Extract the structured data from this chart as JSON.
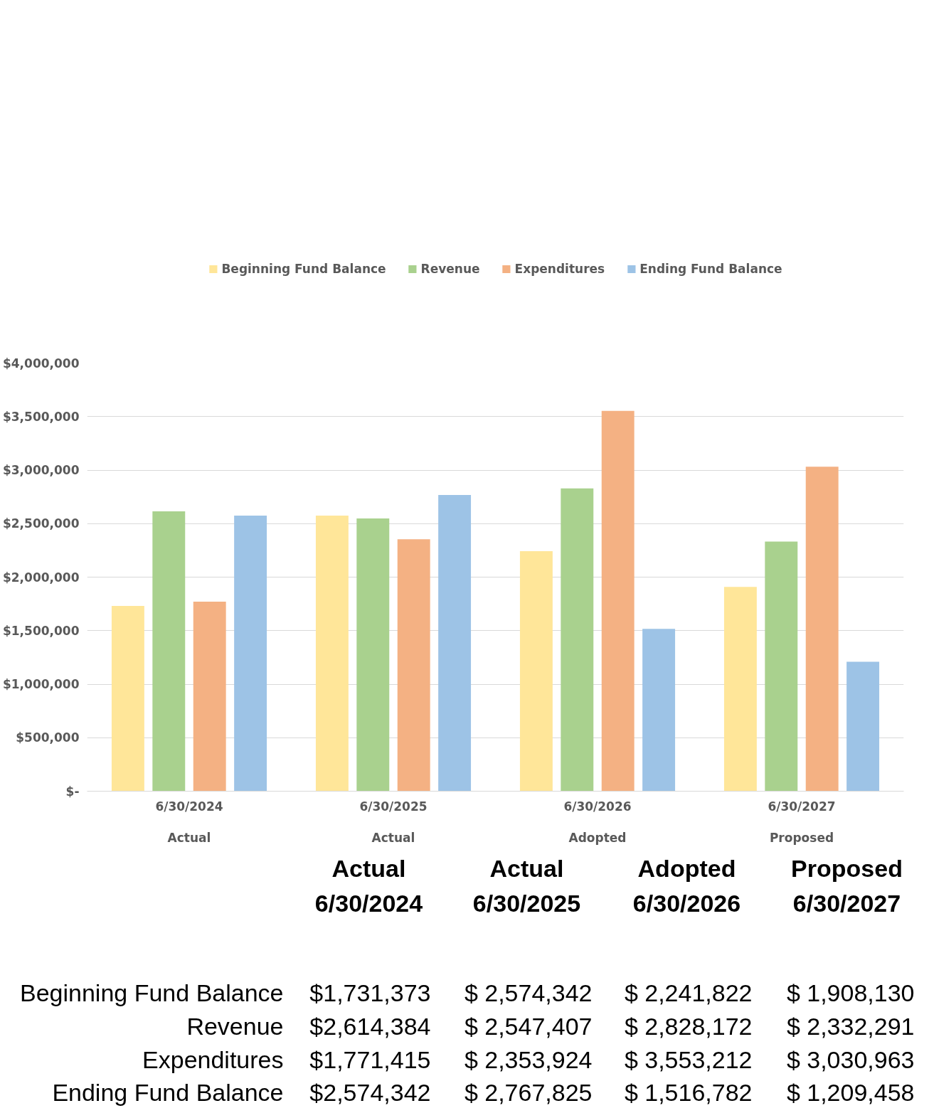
{
  "chart_data": [
    {
      "type": "bar",
      "categories": [
        "6/30/2024\nActual",
        "6/30/2025\nActual",
        "6/30/2026\nAdopted",
        "6/30/2027\nProposed"
      ],
      "series": [
        {
          "name": "Beginning Fund Balance",
          "color": "#ffe699",
          "values": [
            1731373,
            2574342,
            2241822,
            1908130
          ]
        },
        {
          "name": "Revenue",
          "color": "#a9d18e",
          "values": [
            2614384,
            2547407,
            2828172,
            2332291
          ]
        },
        {
          "name": "Expenditures",
          "color": "#f4b183",
          "values": [
            1771415,
            2353924,
            3553212,
            3030963
          ]
        },
        {
          "name": "Ending Fund Balance",
          "color": "#9dc3e6",
          "values": [
            2574342,
            2767825,
            1516782,
            1209458
          ]
        }
      ],
      "ylim": [
        0,
        4000000
      ],
      "yticks": [
        {
          "value": 0,
          "label": "$-"
        },
        {
          "value": 500000,
          "label": "$500,000"
        },
        {
          "value": 1000000,
          "label": "$1,000,000"
        },
        {
          "value": 1500000,
          "label": "$1,500,000"
        },
        {
          "value": 2000000,
          "label": "$2,000,000"
        },
        {
          "value": 2500000,
          "label": "$2,500,000"
        },
        {
          "value": 3000000,
          "label": "$3,000,000"
        },
        {
          "value": 3500000,
          "label": "$3,500,000"
        },
        {
          "value": 4000000,
          "label": "$4,000,000"
        }
      ],
      "grid": "y",
      "legend": "top"
    },
    {
      "type": "other",
      "annotations": [
        "Actual\n6/30/2024",
        "Actual\n6/30/2025",
        "Adopted\n6/30/2026",
        "Proposed\n6/30/2027",
        "Beginning Fund Balance",
        "$1,731,373",
        "$ 2,574,342",
        "$ 2,241,822",
        "$ 1,908,130",
        "Revenue",
        "$2,614,384",
        "$ 2,547,407",
        "$ 2,828,172",
        "$ 2,332,291",
        "Expenditures",
        "$1,771,415",
        "$ 2,353,924",
        "$ 3,553,212",
        "$ 3,030,963",
        "Ending Fund Balance",
        "$2,574,342",
        "$ 2,767,825",
        "$ 1,516,782",
        "$ 1,209,458"
      ]
    }
  ]
}
